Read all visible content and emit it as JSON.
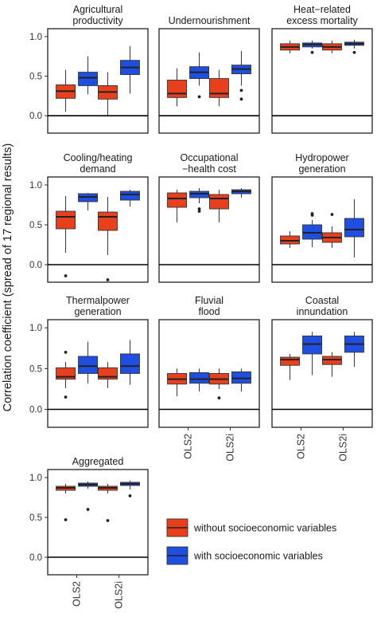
{
  "chart_data": {
    "type": "box",
    "ylabel": "Correlation coefficient (spread of 17 regional results)",
    "ylim": [
      -0.22,
      1.1
    ],
    "y_ticks": [
      0.0,
      0.5,
      1.0
    ],
    "y_tick_labels": [
      "0.0",
      "0.5",
      "1.0"
    ],
    "x_categories": [
      "OLS2",
      "OLS2i"
    ],
    "reference_line_y": 0,
    "series": [
      {
        "name": "without socioeconomic variables",
        "color": "#e8401c"
      },
      {
        "name": "with socioeconomic variables",
        "color": "#1f4fe0"
      }
    ],
    "legend": {
      "position": "bottom-right",
      "items": [
        "without socioeconomic variables",
        "with socioeconomic variables"
      ]
    },
    "panels": [
      {
        "title": "Agricultural\nproductivity",
        "boxes": {
          "OLS2": {
            "without": {
              "min": 0.05,
              "q1": 0.22,
              "median": 0.31,
              "q3": 0.39,
              "max": 0.58,
              "outliers": []
            },
            "with": {
              "min": 0.27,
              "q1": 0.38,
              "median": 0.48,
              "q3": 0.55,
              "max": 0.75,
              "outliers": []
            }
          },
          "OLS2i": {
            "without": {
              "min": 0.0,
              "q1": 0.21,
              "median": 0.3,
              "q3": 0.38,
              "max": 0.55,
              "outliers": []
            },
            "with": {
              "min": 0.28,
              "q1": 0.52,
              "median": 0.61,
              "q3": 0.7,
              "max": 0.88,
              "outliers": []
            }
          }
        }
      },
      {
        "title": "Undernourishment",
        "boxes": {
          "OLS2": {
            "without": {
              "min": 0.12,
              "q1": 0.23,
              "median": 0.28,
              "q3": 0.45,
              "max": 0.6,
              "outliers": []
            },
            "with": {
              "min": 0.38,
              "q1": 0.47,
              "median": 0.55,
              "q3": 0.62,
              "max": 0.8,
              "outliers": [
                0.24
              ]
            }
          },
          "OLS2i": {
            "without": {
              "min": 0.12,
              "q1": 0.23,
              "median": 0.28,
              "q3": 0.47,
              "max": 0.58,
              "outliers": []
            },
            "with": {
              "min": 0.38,
              "q1": 0.53,
              "median": 0.59,
              "q3": 0.64,
              "max": 0.82,
              "outliers": [
                0.21,
                0.32
              ]
            }
          }
        }
      },
      {
        "title": "Heat−related\nexcess mortality",
        "boxes": {
          "OLS2": {
            "without": {
              "min": 0.79,
              "q1": 0.83,
              "median": 0.87,
              "q3": 0.91,
              "max": 0.95,
              "outliers": []
            },
            "with": {
              "min": 0.85,
              "q1": 0.87,
              "median": 0.9,
              "q3": 0.92,
              "max": 0.95,
              "outliers": [
                0.8
              ]
            }
          },
          "OLS2i": {
            "without": {
              "min": 0.79,
              "q1": 0.83,
              "median": 0.87,
              "q3": 0.91,
              "max": 0.95,
              "outliers": []
            },
            "with": {
              "min": 0.85,
              "q1": 0.89,
              "median": 0.91,
              "q3": 0.93,
              "max": 0.96,
              "outliers": [
                0.8
              ]
            }
          }
        }
      },
      {
        "title": "Cooling/heating\ndemand",
        "boxes": {
          "OLS2": {
            "without": {
              "min": 0.15,
              "q1": 0.45,
              "median": 0.6,
              "q3": 0.67,
              "max": 0.86,
              "outliers": [
                -0.14
              ]
            },
            "with": {
              "min": 0.68,
              "q1": 0.79,
              "median": 0.85,
              "q3": 0.89,
              "max": 0.9,
              "outliers": []
            }
          },
          "OLS2i": {
            "without": {
              "min": 0.12,
              "q1": 0.43,
              "median": 0.6,
              "q3": 0.66,
              "max": 0.85,
              "outliers": [
                -0.19
              ]
            },
            "with": {
              "min": 0.73,
              "q1": 0.81,
              "median": 0.88,
              "q3": 0.92,
              "max": 0.94,
              "outliers": []
            }
          }
        }
      },
      {
        "title": "Occupational\n−health cost",
        "boxes": {
          "OLS2": {
            "without": {
              "min": 0.53,
              "q1": 0.72,
              "median": 0.83,
              "q3": 0.9,
              "max": 0.94,
              "outliers": []
            },
            "with": {
              "min": 0.77,
              "q1": 0.84,
              "median": 0.89,
              "q3": 0.92,
              "max": 0.96,
              "outliers": [
                0.67,
                0.7
              ]
            }
          },
          "OLS2i": {
            "without": {
              "min": 0.53,
              "q1": 0.7,
              "median": 0.83,
              "q3": 0.88,
              "max": 0.94,
              "outliers": []
            },
            "with": {
              "min": 0.84,
              "q1": 0.89,
              "median": 0.92,
              "q3": 0.94,
              "max": 0.96,
              "outliers": []
            }
          }
        }
      },
      {
        "title": "Hydropower\ngeneration",
        "boxes": {
          "OLS2": {
            "without": {
              "min": 0.21,
              "q1": 0.26,
              "median": 0.3,
              "q3": 0.36,
              "max": 0.42,
              "outliers": []
            },
            "with": {
              "min": 0.22,
              "q1": 0.32,
              "median": 0.4,
              "q3": 0.5,
              "max": 0.56,
              "outliers": [
                0.62,
                0.64
              ]
            }
          },
          "OLS2i": {
            "without": {
              "min": 0.21,
              "q1": 0.28,
              "median": 0.34,
              "q3": 0.4,
              "max": 0.48,
              "outliers": [
                0.63
              ]
            },
            "with": {
              "min": 0.09,
              "q1": 0.35,
              "median": 0.44,
              "q3": 0.58,
              "max": 0.82,
              "outliers": []
            }
          }
        }
      },
      {
        "title": "Thermalpower\ngeneration",
        "boxes": {
          "OLS2": {
            "without": {
              "min": 0.26,
              "q1": 0.37,
              "median": 0.4,
              "q3": 0.51,
              "max": 0.58,
              "outliers": [
                0.15,
                0.7
              ]
            },
            "with": {
              "min": 0.32,
              "q1": 0.44,
              "median": 0.53,
              "q3": 0.65,
              "max": 0.83,
              "outliers": []
            }
          },
          "OLS2i": {
            "without": {
              "min": 0.26,
              "q1": 0.37,
              "median": 0.4,
              "q3": 0.51,
              "max": 0.58,
              "outliers": []
            },
            "with": {
              "min": 0.3,
              "q1": 0.44,
              "median": 0.53,
              "q3": 0.68,
              "max": 0.85,
              "outliers": []
            }
          }
        }
      },
      {
        "title": "Fluvial\nflood",
        "boxes": {
          "OLS2": {
            "without": {
              "min": 0.16,
              "q1": 0.31,
              "median": 0.37,
              "q3": 0.44,
              "max": 0.5,
              "outliers": []
            },
            "with": {
              "min": 0.22,
              "q1": 0.32,
              "median": 0.37,
              "q3": 0.45,
              "max": 0.5,
              "outliers": []
            }
          },
          "OLS2i": {
            "without": {
              "min": 0.25,
              "q1": 0.31,
              "median": 0.37,
              "q3": 0.44,
              "max": 0.5,
              "outliers": [
                0.14
              ]
            },
            "with": {
              "min": 0.22,
              "q1": 0.32,
              "median": 0.38,
              "q3": 0.46,
              "max": 0.5,
              "outliers": []
            }
          }
        }
      },
      {
        "title": "Coastal\ninnundation",
        "boxes": {
          "OLS2": {
            "without": {
              "min": 0.36,
              "q1": 0.54,
              "median": 0.61,
              "q3": 0.64,
              "max": 0.68,
              "outliers": []
            },
            "with": {
              "min": 0.42,
              "q1": 0.68,
              "median": 0.8,
              "q3": 0.9,
              "max": 0.95,
              "outliers": []
            }
          },
          "OLS2i": {
            "without": {
              "min": 0.4,
              "q1": 0.55,
              "median": 0.61,
              "q3": 0.65,
              "max": 0.7,
              "outliers": []
            },
            "with": {
              "min": 0.52,
              "q1": 0.7,
              "median": 0.8,
              "q3": 0.9,
              "max": 0.95,
              "outliers": []
            }
          }
        }
      },
      {
        "title": "Aggregated",
        "boxes": {
          "OLS2": {
            "without": {
              "min": 0.8,
              "q1": 0.84,
              "median": 0.87,
              "q3": 0.89,
              "max": 0.92,
              "outliers": [
                0.47
              ]
            },
            "with": {
              "min": 0.86,
              "q1": 0.89,
              "median": 0.91,
              "q3": 0.93,
              "max": 0.95,
              "outliers": [
                0.6
              ]
            }
          },
          "OLS2i": {
            "without": {
              "min": 0.8,
              "q1": 0.84,
              "median": 0.87,
              "q3": 0.89,
              "max": 0.92,
              "outliers": [
                0.46
              ]
            },
            "with": {
              "min": 0.85,
              "q1": 0.9,
              "median": 0.92,
              "q3": 0.94,
              "max": 0.96,
              "outliers": [
                0.77
              ]
            }
          }
        }
      }
    ]
  }
}
